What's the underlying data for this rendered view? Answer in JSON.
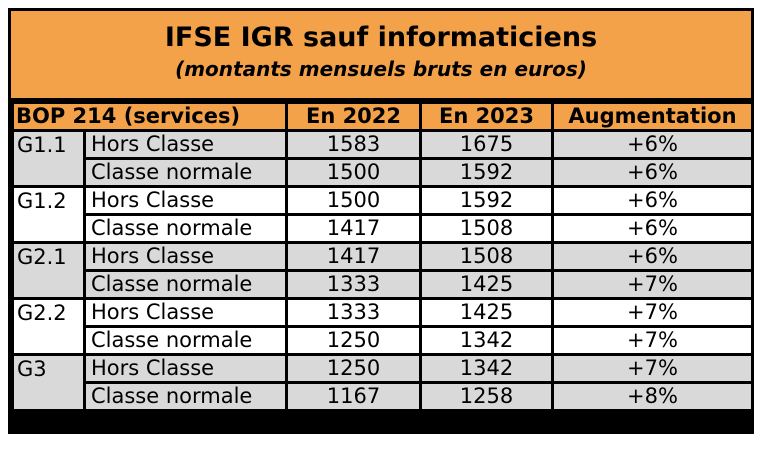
{
  "title": "IFSE IGR sauf informaticiens",
  "subtitle": "(montants mensuels bruts en euros)",
  "headers": {
    "bop": "BOP 214 (services)",
    "y2022": "En 2022",
    "y2023": "En 2023",
    "increase": "Augmentation"
  },
  "rows": [
    {
      "grade": "G1.1",
      "classe": "Hors Classe",
      "y2022": "1583",
      "y2023": "1675",
      "increase": "+6%"
    },
    {
      "grade": "",
      "classe": "Classe normale",
      "y2022": "1500",
      "y2023": "1592",
      "increase": "+6%"
    },
    {
      "grade": "G1.2",
      "classe": "Hors Classe",
      "y2022": "1500",
      "y2023": "1592",
      "increase": "+6%"
    },
    {
      "grade": "",
      "classe": "Classe normale",
      "y2022": "1417",
      "y2023": "1508",
      "increase": "+6%"
    },
    {
      "grade": "G2.1",
      "classe": "Hors Classe",
      "y2022": "1417",
      "y2023": "1508",
      "increase": "+6%"
    },
    {
      "grade": "",
      "classe": "Classe normale",
      "y2022": "1333",
      "y2023": "1425",
      "increase": "+7%"
    },
    {
      "grade": "G2.2",
      "classe": "Hors Classe",
      "y2022": "1333",
      "y2023": "1425",
      "increase": "+7%"
    },
    {
      "grade": "",
      "classe": "Classe normale",
      "y2022": "1250",
      "y2023": "1342",
      "increase": "+7%"
    },
    {
      "grade": "G3",
      "classe": "Hors Classe",
      "y2022": "1250",
      "y2023": "1342",
      "increase": "+7%"
    },
    {
      "grade": "",
      "classe": "Classe normale",
      "y2022": "1167",
      "y2023": "1258",
      "increase": "+8%"
    }
  ],
  "colors": {
    "header_orange": "#f4a24a",
    "row_gray": "#d9d9d9",
    "row_white": "#ffffff"
  }
}
